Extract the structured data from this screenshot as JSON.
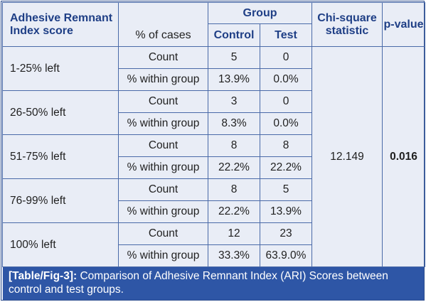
{
  "headers": {
    "ari": "Adhesive Remnant Index score",
    "cases": "% of cases",
    "group": "Group",
    "control": "Control",
    "test": "Test",
    "chi": "Chi-square statistic",
    "p": "p-value"
  },
  "stats": {
    "chi_square": "12.149",
    "p_value": "0.016"
  },
  "rows": [
    {
      "score": "1-25% left",
      "count_label": "Count",
      "pct_label": "% within group",
      "control_count": "5",
      "test_count": "0",
      "control_pct": "13.9%",
      "test_pct": "0.0%"
    },
    {
      "score": "26-50% left",
      "count_label": "Count",
      "pct_label": "% within group",
      "control_count": "3",
      "test_count": "0",
      "control_pct": "8.3%",
      "test_pct": "0.0%"
    },
    {
      "score": "51-75% left",
      "count_label": "Count",
      "pct_label": "% within group",
      "control_count": "8",
      "test_count": "8",
      "control_pct": "22.2%",
      "test_pct": "22.2%"
    },
    {
      "score": "76-99% left",
      "count_label": "Count",
      "pct_label": "% within group",
      "control_count": "8",
      "test_count": "5",
      "control_pct": "22.2%",
      "test_pct": "13.9%"
    },
    {
      "score": "100% left",
      "count_label": "Count",
      "pct_label": "% within group",
      "control_count": "12",
      "test_count": "23",
      "control_pct": "33.3%",
      "test_pct": "63.9.0%"
    }
  ],
  "caption": {
    "tag": "[Table/Fig-3]:",
    "text": "Comparison of Adhesive Remnant Index (ARI) Scores between control and test groups."
  }
}
